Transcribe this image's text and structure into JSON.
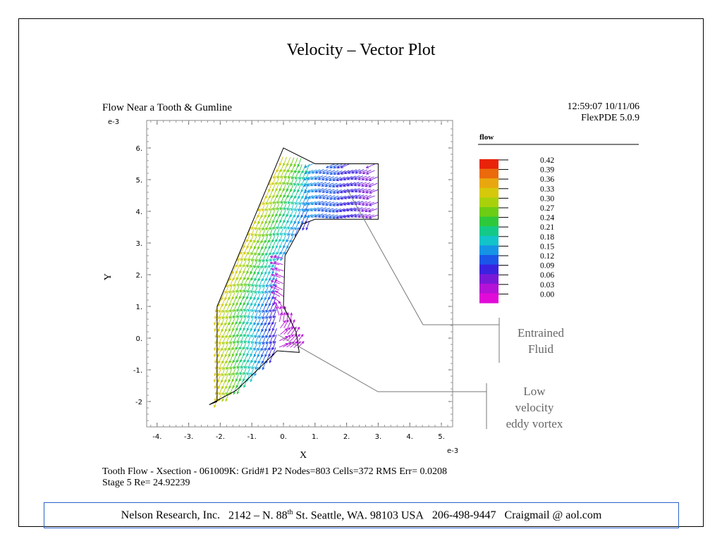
{
  "slide": {
    "title": "Velocity – Vector Plot"
  },
  "plot_header": {
    "title": "Flow Near a Tooth & Gumline",
    "timestamp": "12:59:07 10/11/06",
    "software": "FlexPDE 5.0.9"
  },
  "stats": {
    "line1": "Tooth Flow - Xsection - 061009K:  Grid#1  P2  Nodes=803 Cells=372 RMS Err= 0.0208",
    "line2": "Stage 5  Re=  24.92239"
  },
  "callouts": {
    "entrained": [
      "Entrained",
      "Fluid"
    ],
    "eddy": [
      "Low",
      "velocity",
      "eddy vortex"
    ]
  },
  "footer": {
    "company": "Nelson Research, Inc.",
    "address_prefix": "2142 –  N. 88",
    "address_sup": "th",
    "address_suffix": " St. Seattle, WA. 98103   USA",
    "phone": "206-498-9447",
    "email": "Craigmail @ aol.com"
  },
  "chart_data": {
    "type": "vector",
    "title": "Flow Near a Tooth & Gumline",
    "xlabel": "X",
    "ylabel": "Y",
    "x_exponent": "e-3",
    "y_exponent": "e-3",
    "xlim": [
      -4.4,
      5.3
    ],
    "ylim": [
      -2.8,
      6.7
    ],
    "x_ticks": [
      -4,
      -3,
      -2,
      -1,
      0,
      1,
      2,
      3,
      4,
      5
    ],
    "x_tick_labels": [
      "-4.",
      "-3.",
      "-2.",
      "-1.",
      "0.",
      "1.",
      "2.",
      "3.",
      "4.",
      "5."
    ],
    "y_ticks": [
      -2,
      -1,
      0,
      1,
      2,
      3,
      4,
      5,
      6
    ],
    "y_tick_labels": [
      "-2",
      "-1.",
      "0.",
      "1.",
      "2.",
      "3.",
      "4.",
      "5.",
      "6."
    ],
    "legend": {
      "title": "flow",
      "levels": [
        0.42,
        0.39,
        0.36,
        0.33,
        0.3,
        0.27,
        0.24,
        0.21,
        0.18,
        0.15,
        0.12,
        0.09,
        0.06,
        0.03,
        0.0
      ],
      "labels": [
        "0.42",
        "0.39",
        "0.36",
        "0.33",
        "0.30",
        "0.27",
        "0.24",
        "0.21",
        "0.18",
        "0.15",
        "0.12",
        "0.09",
        "0.06",
        "0.03",
        "0.00"
      ],
      "colors": [
        "#e8230a",
        "#ea6a0c",
        "#e9a70f",
        "#d6c80a",
        "#a8d10c",
        "#6ccd14",
        "#2ec93a",
        "#14c988",
        "#12c4c9",
        "#1594e6",
        "#1a56e8",
        "#3a22e0",
        "#7a18d8",
        "#b412d6",
        "#e10ad8"
      ]
    },
    "domain_boundary": [
      [
        -2.1,
        -2.0
      ],
      [
        -2.1,
        1.0
      ],
      [
        0.0,
        6.0
      ],
      [
        1.0,
        5.5
      ],
      [
        3.0,
        5.5
      ],
      [
        3.0,
        3.75
      ],
      [
        1.0,
        3.75
      ],
      [
        0.6,
        3.6
      ],
      [
        0.05,
        2.6
      ],
      [
        0.0,
        1.0
      ],
      [
        0.4,
        0.2
      ],
      [
        0.5,
        -0.45
      ],
      [
        -0.2,
        -0.4
      ],
      [
        -1.5,
        -1.65
      ],
      [
        -2.35,
        -2.1
      ],
      [
        -2.1,
        -2.0
      ]
    ]
  }
}
